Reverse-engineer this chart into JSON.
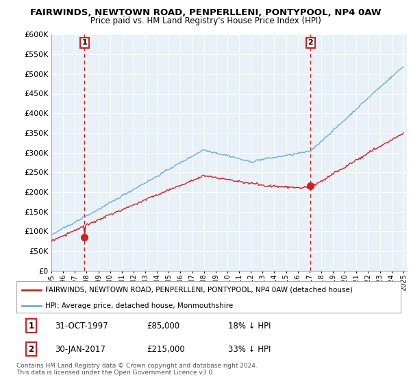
{
  "title": "FAIRWINDS, NEWTOWN ROAD, PENPERLLENI, PONTYPOOL, NP4 0AW",
  "subtitle": "Price paid vs. HM Land Registry's House Price Index (HPI)",
  "legend_line1": "FAIRWINDS, NEWTOWN ROAD, PENPERLLENI, PONTYPOOL, NP4 0AW (detached house)",
  "legend_line2": "HPI: Average price, detached house, Monmouthshire",
  "annotation1_date": "31-OCT-1997",
  "annotation1_price": "£85,000",
  "annotation1_hpi": "18% ↓ HPI",
  "annotation1_year": 1997.83,
  "annotation1_value": 85000,
  "annotation2_date": "30-JAN-2017",
  "annotation2_price": "£215,000",
  "annotation2_hpi": "33% ↓ HPI",
  "annotation2_year": 2017.08,
  "annotation2_value": 215000,
  "footer1": "Contains HM Land Registry data © Crown copyright and database right 2024.",
  "footer2": "This data is licensed under the Open Government Licence v3.0.",
  "hpi_color": "#6ab0d4",
  "price_color": "#cc2222",
  "vline_color": "#cc2222",
  "ylim": [
    0,
    600000
  ],
  "yticks": [
    0,
    50000,
    100000,
    150000,
    200000,
    250000,
    300000,
    350000,
    400000,
    450000,
    500000,
    550000,
    600000
  ],
  "chart_bg": "#e8f0f8",
  "bg_color": "#ffffff",
  "grid_color": "#ffffff"
}
